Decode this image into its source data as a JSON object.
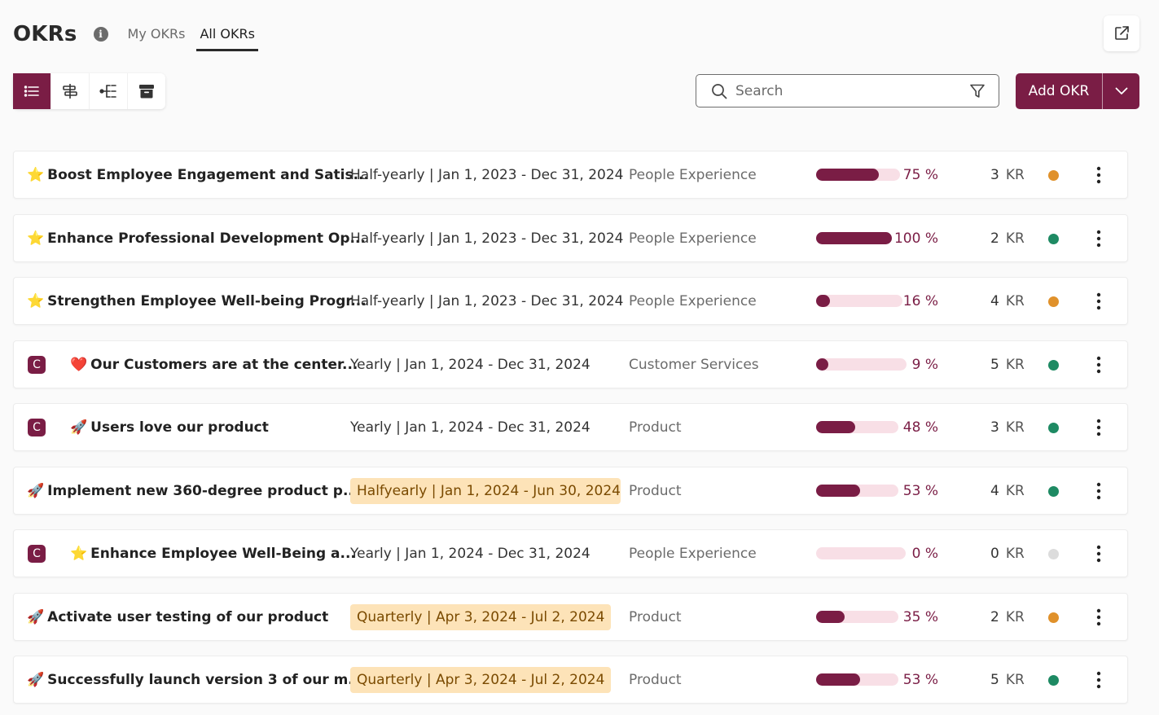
{
  "header": {
    "title": "OKRs",
    "info_icon": "info-icon",
    "tabs": [
      {
        "label": "My OKRs",
        "active": false
      },
      {
        "label": "All OKRs",
        "active": true
      }
    ],
    "external_icon": "external-link-icon"
  },
  "toolbar": {
    "views": [
      {
        "icon": "list-view-icon",
        "active": true
      },
      {
        "icon": "roadmap-view-icon",
        "active": false
      },
      {
        "icon": "tree-view-icon",
        "active": false
      },
      {
        "icon": "archive-icon",
        "active": false
      }
    ],
    "search": {
      "placeholder": "Search",
      "value": ""
    },
    "add_label": "Add OKR"
  },
  "colors": {
    "accent": "#7a1d45",
    "track": "#f8dfe6",
    "highlight_bg": "#fde3b8",
    "status_orange": "#e0912b",
    "status_green": "#1e8a63",
    "status_gray": "#dcdcdc"
  },
  "okrs": [
    {
      "badge": "",
      "emoji": "⭐",
      "title": "Boost Employee Engagement and Satis...",
      "period": "Half-yearly | Jan 1, 2023 - Dec 31, 2024",
      "highlight": false,
      "team": "People Experience",
      "progress": 75,
      "progress_label": "75 %",
      "kr_count": "3",
      "kr_label": "KR",
      "status": "orange"
    },
    {
      "badge": "",
      "emoji": "⭐",
      "title": "Enhance Professional Development Op...",
      "period": "Half-yearly | Jan 1, 2023 - Dec 31, 2024",
      "highlight": false,
      "team": "People Experience",
      "progress": 100,
      "progress_label": "100 %",
      "kr_count": "2",
      "kr_label": "KR",
      "status": "green"
    },
    {
      "badge": "",
      "emoji": "⭐",
      "title": "Strengthen Employee Well-being Progr...",
      "period": "Half-yearly | Jan 1, 2023 - Dec 31, 2024",
      "highlight": false,
      "team": "People Experience",
      "progress": 16,
      "progress_label": "16 %",
      "kr_count": "4",
      "kr_label": "KR",
      "status": "orange"
    },
    {
      "badge": "C",
      "emoji": "❤️",
      "title": "Our Customers are at the center...",
      "period": "Yearly | Jan 1, 2024 - Dec 31, 2024",
      "highlight": false,
      "team": "Customer Services",
      "progress": 9,
      "progress_label": "9 %",
      "kr_count": "5",
      "kr_label": "KR",
      "status": "green"
    },
    {
      "badge": "C",
      "emoji": "🚀",
      "title": "Users love our product",
      "period": "Yearly | Jan 1, 2024 - Dec 31, 2024",
      "highlight": false,
      "team": "Product",
      "progress": 48,
      "progress_label": "48 %",
      "kr_count": "3",
      "kr_label": "KR",
      "status": "green"
    },
    {
      "badge": "",
      "emoji": "🚀",
      "title": "Implement new 360-degree product p...",
      "period": "Halfyearly | Jan 1, 2024 - Jun 30, 2024",
      "highlight": true,
      "team": "Product",
      "progress": 53,
      "progress_label": "53 %",
      "kr_count": "4",
      "kr_label": "KR",
      "status": "green"
    },
    {
      "badge": "C",
      "emoji": "⭐",
      "title": "Enhance Employee Well-Being a...",
      "period": "Yearly | Jan 1, 2024 - Dec 31, 2024",
      "highlight": false,
      "team": "People Experience",
      "progress": 0,
      "progress_label": "0 %",
      "kr_count": "0",
      "kr_label": "KR",
      "status": "gray"
    },
    {
      "badge": "",
      "emoji": "🚀",
      "title": "Activate user testing of our product",
      "period": "Quarterly | Apr 3, 2024 - Jul 2, 2024",
      "highlight": true,
      "team": "Product",
      "progress": 35,
      "progress_label": "35 %",
      "kr_count": "2",
      "kr_label": "KR",
      "status": "orange"
    },
    {
      "badge": "",
      "emoji": "🚀",
      "title": "Successfully launch version 3 of our m...",
      "period": "Quarterly | Apr 3, 2024 - Jul 2, 2024",
      "highlight": true,
      "team": "Product",
      "progress": 53,
      "progress_label": "53 %",
      "kr_count": "5",
      "kr_label": "KR",
      "status": "green"
    }
  ]
}
